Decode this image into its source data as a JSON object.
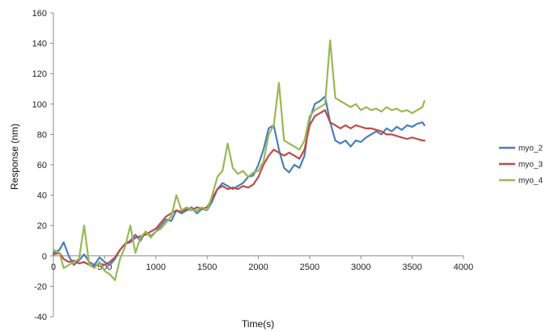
{
  "chart_data": {
    "type": "line",
    "title": "",
    "xlabel": "Time(s)",
    "ylabel": "Response (nm)",
    "xlim": [
      0,
      4000
    ],
    "ylim": [
      -40,
      160
    ],
    "x_ticks": [
      0,
      500,
      1000,
      1500,
      2000,
      2500,
      3000,
      3500,
      4000
    ],
    "y_ticks": [
      -40,
      -20,
      0,
      20,
      40,
      60,
      80,
      100,
      120,
      140,
      160
    ],
    "grid": false,
    "legend_position": "right",
    "series": [
      {
        "name": "myo_2",
        "color": "#4a7ebb",
        "x": [
          0,
          60,
          100,
          150,
          200,
          250,
          300,
          350,
          400,
          450,
          500,
          550,
          600,
          650,
          700,
          750,
          800,
          850,
          900,
          950,
          1000,
          1050,
          1100,
          1150,
          1200,
          1250,
          1300,
          1350,
          1400,
          1450,
          1500,
          1550,
          1600,
          1650,
          1700,
          1750,
          1800,
          1850,
          1900,
          1950,
          2000,
          2050,
          2100,
          2150,
          2200,
          2250,
          2300,
          2350,
          2400,
          2450,
          2500,
          2550,
          2600,
          2650,
          2700,
          2750,
          2800,
          2850,
          2900,
          2950,
          3000,
          3050,
          3100,
          3150,
          3200,
          3250,
          3300,
          3350,
          3400,
          3450,
          3500,
          3550,
          3600,
          3620
        ],
        "y": [
          2,
          4,
          9,
          0,
          -6,
          -3,
          1,
          -4,
          -6,
          -1,
          -4,
          -6,
          -2,
          4,
          8,
          10,
          14,
          10,
          16,
          13,
          16,
          20,
          24,
          23,
          30,
          28,
          30,
          32,
          28,
          31,
          30,
          36,
          44,
          48,
          46,
          44,
          46,
          48,
          52,
          53,
          60,
          70,
          84,
          86,
          70,
          58,
          55,
          60,
          58,
          66,
          90,
          100,
          102,
          105,
          88,
          76,
          74,
          76,
          72,
          76,
          75,
          78,
          80,
          82,
          80,
          84,
          82,
          85,
          83,
          86,
          85,
          87,
          88,
          86
        ]
      },
      {
        "name": "myo_3",
        "color": "#be4b48",
        "x": [
          0,
          60,
          100,
          150,
          200,
          250,
          300,
          350,
          400,
          450,
          500,
          550,
          600,
          650,
          700,
          750,
          800,
          850,
          900,
          950,
          1000,
          1050,
          1100,
          1150,
          1200,
          1250,
          1300,
          1350,
          1400,
          1450,
          1500,
          1550,
          1600,
          1650,
          1700,
          1750,
          1800,
          1850,
          1900,
          1950,
          2000,
          2050,
          2100,
          2150,
          2200,
          2250,
          2300,
          2350,
          2400,
          2450,
          2500,
          2550,
          2600,
          2650,
          2700,
          2750,
          2800,
          2850,
          2900,
          2950,
          3000,
          3050,
          3100,
          3150,
          3200,
          3250,
          3300,
          3350,
          3400,
          3450,
          3500,
          3550,
          3600,
          3620
        ],
        "y": [
          1,
          2,
          -2,
          -4,
          -3,
          -5,
          -4,
          -6,
          -7,
          -5,
          -6,
          -4,
          -1,
          4,
          8,
          9,
          12,
          13,
          14,
          16,
          18,
          22,
          26,
          28,
          30,
          29,
          31,
          30,
          32,
          31,
          32,
          38,
          44,
          46,
          44,
          45,
          44,
          46,
          45,
          47,
          52,
          60,
          66,
          70,
          68,
          66,
          68,
          66,
          64,
          70,
          86,
          92,
          94,
          96,
          88,
          86,
          84,
          86,
          84,
          86,
          85,
          84,
          84,
          83,
          82,
          80,
          80,
          79,
          78,
          77,
          78,
          77,
          76,
          76
        ]
      },
      {
        "name": "myo_4",
        "color": "#98b954",
        "x": [
          0,
          60,
          100,
          150,
          200,
          250,
          300,
          350,
          400,
          450,
          500,
          550,
          600,
          650,
          700,
          750,
          800,
          850,
          900,
          950,
          1000,
          1050,
          1100,
          1150,
          1200,
          1250,
          1300,
          1350,
          1400,
          1450,
          1500,
          1550,
          1600,
          1650,
          1700,
          1750,
          1800,
          1850,
          1900,
          1950,
          2000,
          2050,
          2100,
          2150,
          2200,
          2250,
          2300,
          2350,
          2400,
          2450,
          2500,
          2550,
          2600,
          2650,
          2700,
          2750,
          2800,
          2850,
          2900,
          2950,
          3000,
          3050,
          3100,
          3150,
          3200,
          3250,
          3300,
          3350,
          3400,
          3450,
          3500,
          3550,
          3600,
          3620
        ],
        "y": [
          4,
          2,
          -8,
          -6,
          -4,
          -2,
          20,
          -6,
          -8,
          -4,
          -10,
          -12,
          -16,
          -2,
          6,
          20,
          2,
          12,
          16,
          12,
          16,
          18,
          22,
          26,
          40,
          30,
          32,
          30,
          30,
          32,
          30,
          40,
          52,
          56,
          74,
          58,
          54,
          56,
          52,
          55,
          56,
          62,
          80,
          86,
          114,
          76,
          74,
          72,
          70,
          76,
          92,
          96,
          98,
          100,
          142,
          104,
          102,
          100,
          98,
          100,
          96,
          98,
          96,
          97,
          95,
          98,
          96,
          97,
          95,
          96,
          94,
          96,
          98,
          102
        ]
      }
    ]
  }
}
